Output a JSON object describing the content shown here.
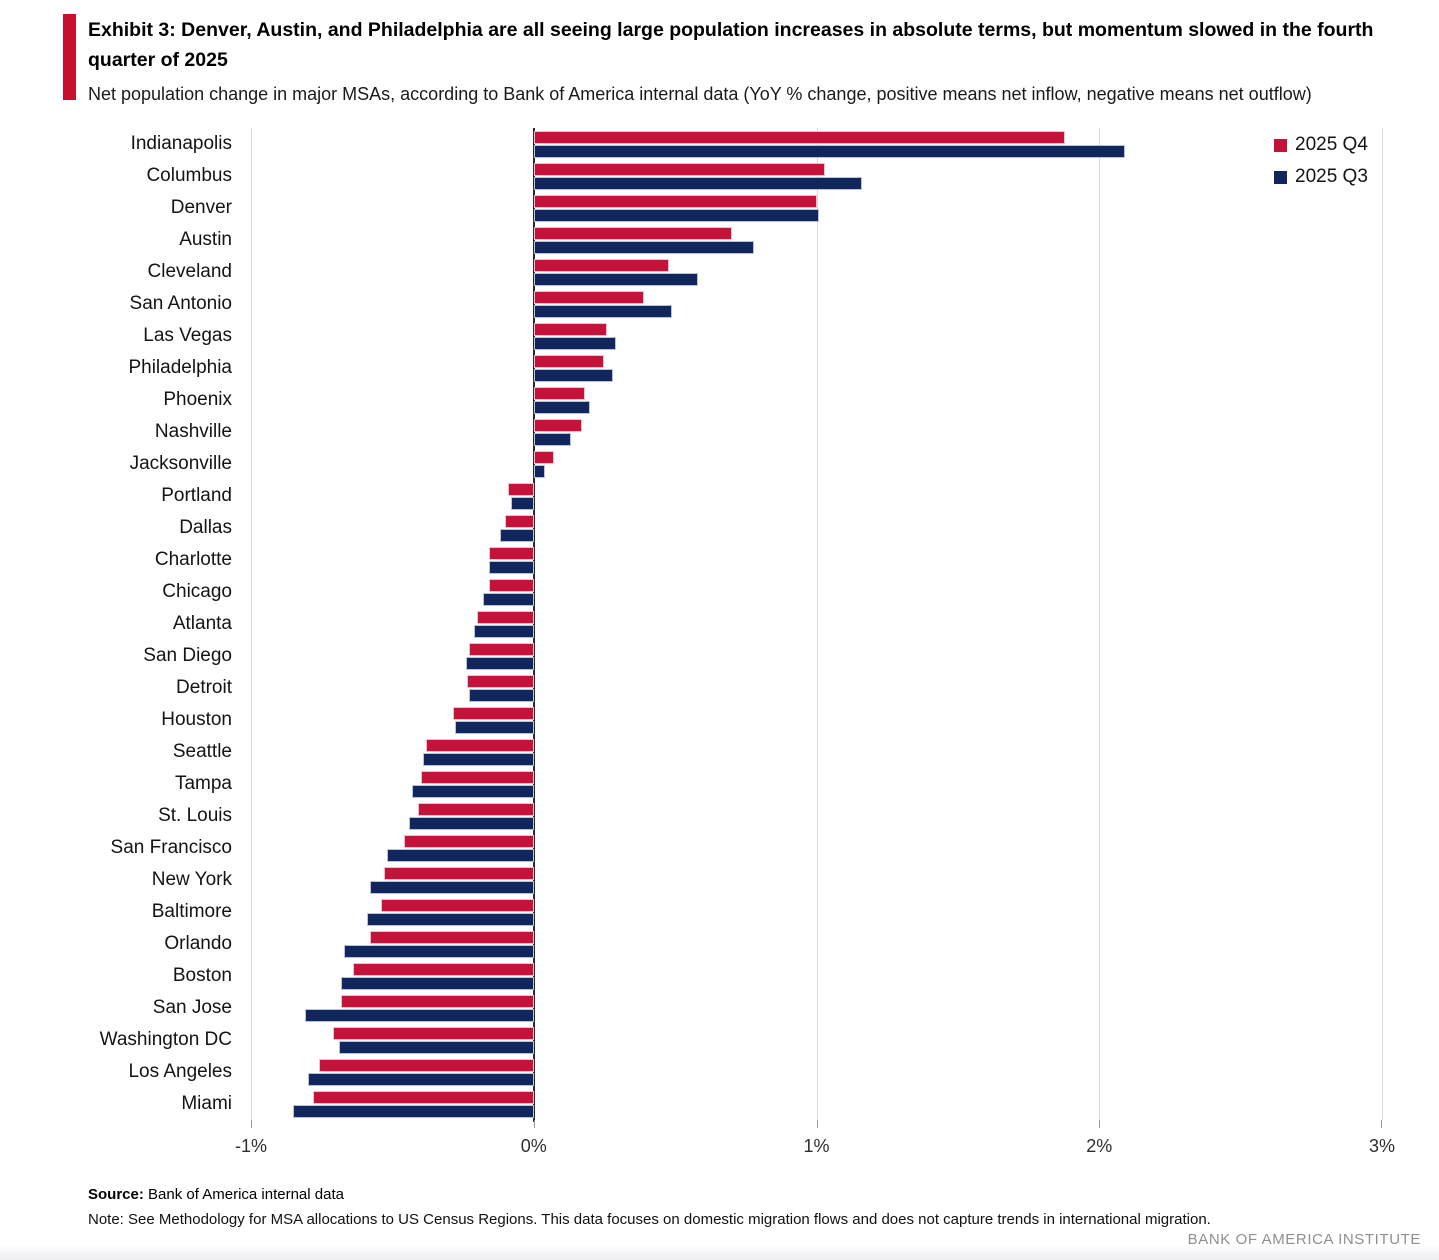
{
  "accent_color": "#C8102E",
  "header": {
    "exhibit_title": "Exhibit 3: Denver, Austin, and Philadelphia are all seeing large population increases in absolute terms, but momentum slowed in the fourth quarter of 2025",
    "subtitle": "Net population change in major MSAs, according to Bank of America internal data (YoY % change, positive means net inflow, negative means net outflow)"
  },
  "chart_data": {
    "type": "bar",
    "orientation": "horizontal",
    "title": "Net population change in major MSAs (YoY % change)",
    "xlim": [
      -1,
      3
    ],
    "grid": "vertical",
    "legend_position": "top-right",
    "xtick_labels": [
      "-1%",
      "0%",
      "1%",
      "2%",
      "3%"
    ],
    "tick_values": [
      -1,
      0,
      1,
      2,
      3
    ],
    "categories": [
      "Indianapolis",
      "Columbus",
      "Denver",
      "Austin",
      "Cleveland",
      "San Antonio",
      "Las Vegas",
      "Philadelphia",
      "Phoenix",
      "Nashville",
      "Jacksonville",
      "Portland",
      "Dallas",
      "Charlotte",
      "Chicago",
      "Atlanta",
      "San Diego",
      "Detroit",
      "Houston",
      "Seattle",
      "Tampa",
      "St. Louis",
      "San Francisco",
      "New York",
      "Baltimore",
      "Orlando",
      "Boston",
      "San Jose",
      "Washington DC",
      "Los Angeles",
      "Miami"
    ],
    "series": [
      {
        "name": "2025 Q4",
        "color": "#C41239",
        "values": [
          1.88,
          1.03,
          1.0,
          0.7,
          0.48,
          0.39,
          0.26,
          0.25,
          0.18,
          0.17,
          0.07,
          -0.09,
          -0.1,
          -0.16,
          -0.16,
          -0.2,
          -0.23,
          -0.235,
          -0.285,
          -0.38,
          -0.4,
          -0.41,
          -0.46,
          -0.53,
          -0.54,
          -0.58,
          -0.64,
          -0.68,
          -0.71,
          -0.76,
          -0.78
        ]
      },
      {
        "name": "2025 Q3",
        "color": "#12265E",
        "values": [
          2.09,
          1.16,
          1.01,
          0.78,
          0.58,
          0.49,
          0.29,
          0.28,
          0.2,
          0.13,
          0.04,
          -0.08,
          -0.12,
          -0.16,
          -0.18,
          -0.21,
          -0.24,
          -0.23,
          -0.28,
          -0.39,
          -0.43,
          -0.44,
          -0.52,
          -0.58,
          -0.59,
          -0.67,
          -0.68,
          -0.81,
          -0.69,
          -0.8,
          -0.85
        ]
      }
    ]
  },
  "footer": {
    "source_label": "Source:",
    "source_text": " Bank of America internal data",
    "note_text": "Note: See Methodology for MSA allocations to US Census Regions. This data focuses on domestic migration flows and does not capture trends in international migration.",
    "brand_text": "BANK OF AMERICA INSTITUTE"
  }
}
